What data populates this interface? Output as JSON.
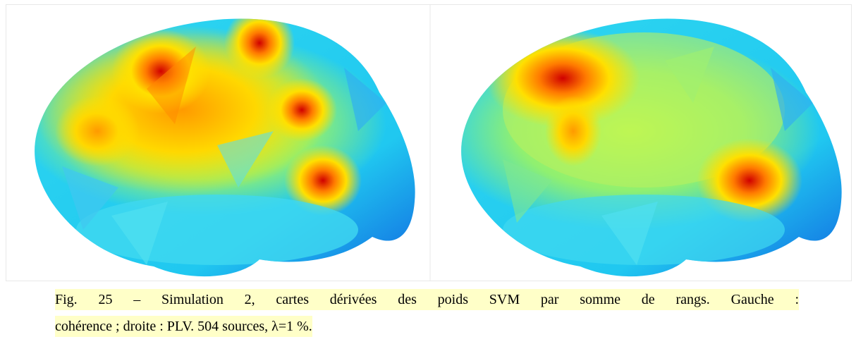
{
  "figure": {
    "caption": {
      "lines": [
        "Fig. 25 – Simulation 2, cartes dérivées des poids SVM par somme de rangs. Gauche :",
        "cohérence ; droite : PLV. 504 sources, λ=1 %."
      ]
    }
  }
}
